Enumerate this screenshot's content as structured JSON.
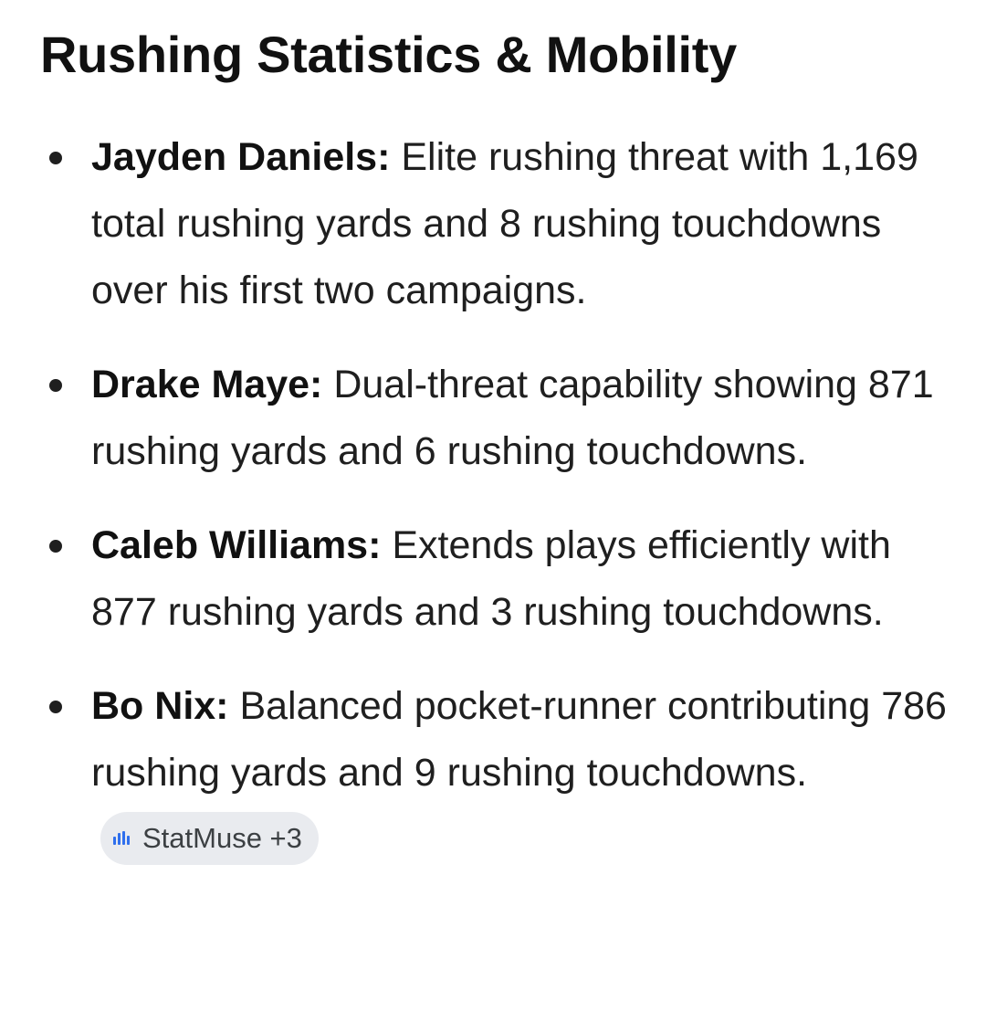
{
  "section": {
    "title": "Rushing Statistics & Mobility"
  },
  "items": [
    {
      "name": "Jayden Daniels:",
      "text": " Elite rushing threat with 1,169 total rushing yards and 8 rushing touchdowns over his first two campaigns."
    },
    {
      "name": "Drake Maye:",
      "text": " Dual-threat capability showing 871 rushing yards and 6 rushing touchdowns."
    },
    {
      "name": "Caleb Williams:",
      "text": " Extends plays efficiently with 877 rushing yards and 3 rushing touchdowns."
    },
    {
      "name": "Bo Nix:",
      "text": " Balanced pocket-runner contributing 786 rushing yards and 9 rushing touchdowns."
    }
  ],
  "source_chip": {
    "label": "StatMuse +3",
    "icon": "statmuse-logo-icon",
    "icon_color": "#2f6fed"
  }
}
